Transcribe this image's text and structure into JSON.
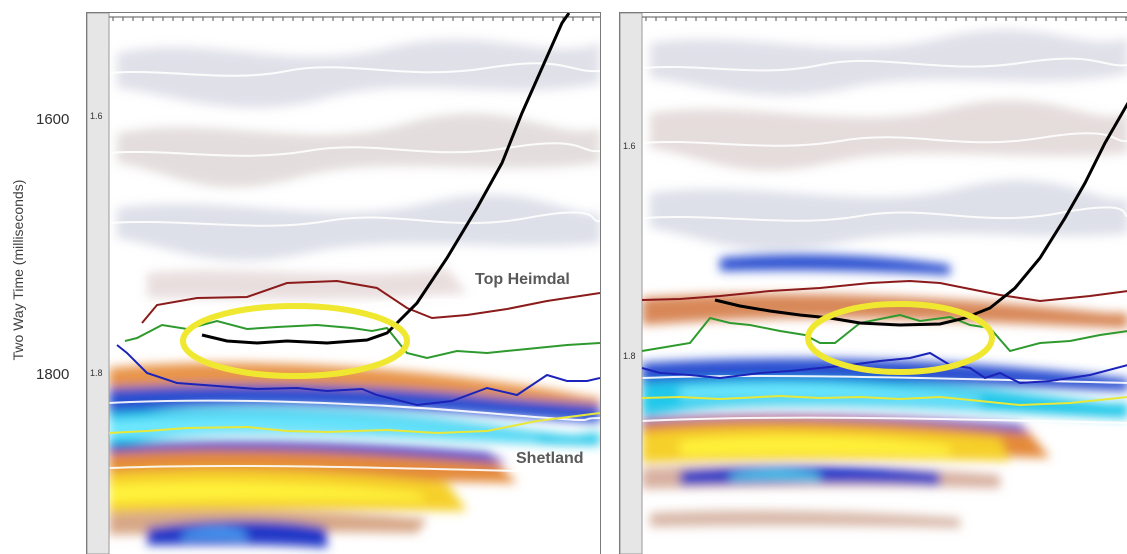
{
  "yaxis": {
    "label": "Two Way Time (milliseconds)",
    "tick_1600": "1600",
    "tick_1800": "1800"
  },
  "left_panel": {
    "tick_upper": "1.6",
    "tick_lower": "1.8",
    "label_top_heimdal": "Top Heimdal",
    "label_shetland": "Shetland"
  },
  "right_panel": {
    "tick_upper": "1.6",
    "tick_lower": "1.8"
  },
  "colors": {
    "top_heimdal_horizon": "#8b1a1a",
    "green_horizon": "#2e9a2e",
    "blue_horizon": "#1c23b8",
    "shetland_horizon": "#e8e83a",
    "well_path": "#000000",
    "highlight_ellipse": "#f0e830"
  }
}
